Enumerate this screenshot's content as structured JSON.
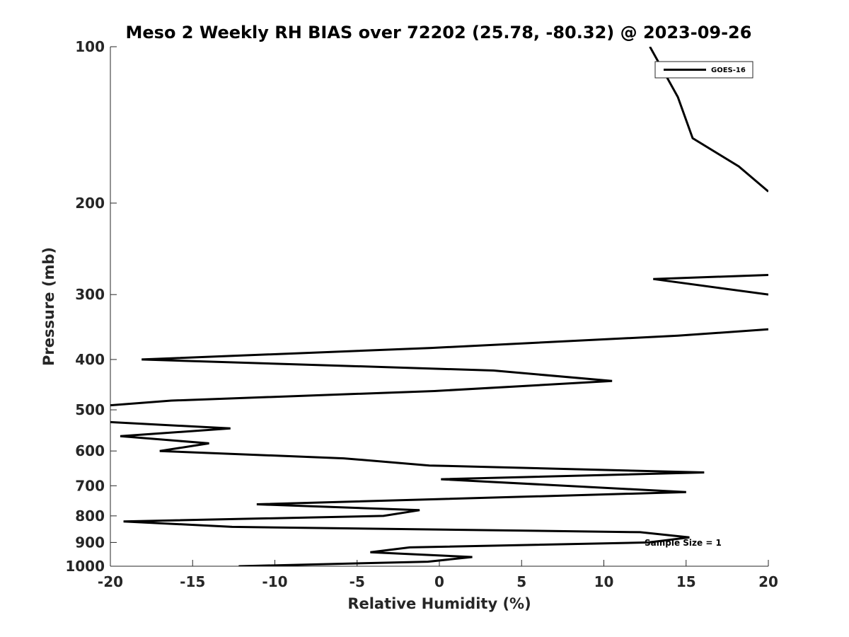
{
  "chart_data": {
    "type": "line",
    "title": "Meso 2 Weekly RH BIAS over 72202 (25.78, -80.32) @ 2023-09-26",
    "xlabel": "Relative Humidity (%)",
    "ylabel": "Pressure (mb)",
    "xlim": [
      -20,
      20
    ],
    "ylim": [
      100,
      1000
    ],
    "y_scale": "log",
    "y_reversed": true,
    "grid": false,
    "legend_position": "top-right",
    "x_ticks": [
      -20,
      -15,
      -10,
      -5,
      0,
      5,
      10,
      15,
      20
    ],
    "x_tick_labels": [
      "-20",
      "-15",
      "-10",
      "-5",
      "0",
      "5",
      "10",
      "15",
      "20"
    ],
    "y_ticks": [
      100,
      200,
      300,
      400,
      500,
      600,
      700,
      800,
      900,
      1000
    ],
    "y_tick_labels": [
      "100",
      "200",
      "300",
      "400",
      "500",
      "600",
      "700",
      "800",
      "900",
      "1000"
    ],
    "annotation": "Sample Size = 1",
    "series": [
      {
        "name": "GOES-16",
        "color": "#000000",
        "segments": [
          {
            "x": [
              12.8,
              14.5,
              15.4,
              18.2,
              20.0
            ],
            "y": [
              100,
              125,
              150,
              170,
              190
            ]
          },
          {
            "x": [
              20.0,
              13.0,
              20.0
            ],
            "y": [
              275,
              280,
              300
            ]
          },
          {
            "x": [
              20.0,
              14.5,
              -0.5,
              -18.1,
              3.3,
              10.5,
              -0.3,
              -16.3,
              -20.0
            ],
            "y": [
              350,
              360,
              380,
              400,
              420,
              440,
              460,
              480,
              490
            ]
          },
          {
            "x": [
              -20.0,
              -12.7,
              -19.4,
              -14.0,
              -17.0,
              -5.8,
              -0.6,
              16.1,
              0.1,
              15.0,
              -11.1,
              -1.2,
              -3.4,
              -19.2,
              -12.6,
              12.2,
              15.2,
              12.7,
              -1.8,
              -4.2,
              2.0,
              -0.7,
              -12.2
            ],
            "y": [
              528,
              543,
              562,
              580,
              600,
              620,
              640,
              660,
              680,
              720,
              760,
              780,
              800,
              820,
              840,
              860,
              880,
              900,
              920,
              940,
              960,
              980,
              1000
            ]
          }
        ]
      }
    ]
  }
}
